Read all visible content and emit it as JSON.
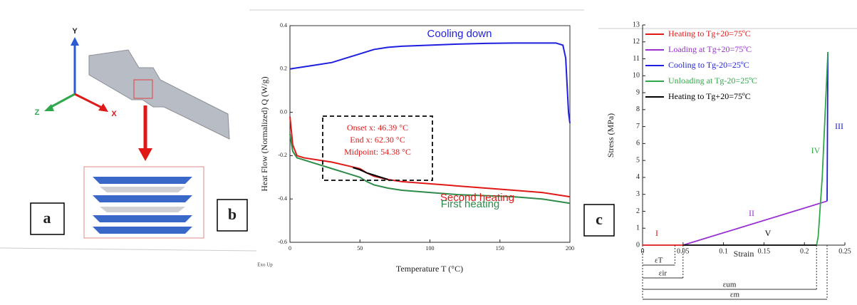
{
  "panel_labels": [
    "a",
    "b",
    "c"
  ],
  "diagram": {
    "axis_labels": [
      "Y",
      "Z",
      "X"
    ]
  },
  "chart_data": [
    {
      "type": "line",
      "x_label": "Temperature T (°C)",
      "y_label": "Heat Flow (Normalized) Q (W/g)",
      "xlim": [
        0,
        200
      ],
      "xticks": [
        0,
        50,
        100,
        150,
        200
      ],
      "ylim": [
        -0.6,
        0.4
      ],
      "yticks": [
        -0.6,
        -0.4,
        -0.2,
        {
          "value": 0,
          "label": "0.0"
        },
        0.2,
        0.4
      ],
      "series": [
        {
          "name": "Cooling down",
          "color": "#1f1fe0",
          "x": [
            0,
            10,
            20,
            30,
            40,
            50,
            60,
            70,
            80,
            100,
            120,
            140,
            160,
            180,
            190,
            195,
            197,
            199,
            200
          ],
          "values": [
            0.2,
            0.21,
            0.22,
            0.23,
            0.25,
            0.27,
            0.29,
            0.3,
            0.305,
            0.31,
            0.315,
            0.318,
            0.32,
            0.32,
            0.32,
            0.31,
            0.25,
            0.0,
            -0.05
          ]
        },
        {
          "name": "Second heating",
          "color": "#e01818",
          "x": [
            0,
            2,
            5,
            10,
            20,
            30,
            40,
            50,
            55,
            60,
            70,
            80,
            100,
            120,
            140,
            160,
            180,
            200
          ],
          "values": [
            -0.02,
            -0.15,
            -0.2,
            -0.21,
            -0.22,
            -0.23,
            -0.245,
            -0.26,
            -0.28,
            -0.295,
            -0.31,
            -0.32,
            -0.33,
            -0.34,
            -0.35,
            -0.36,
            -0.37,
            -0.39
          ]
        },
        {
          "name": "First heating",
          "color": "#2e8b4a",
          "x": [
            0,
            2,
            5,
            10,
            20,
            30,
            40,
            50,
            55,
            60,
            70,
            80,
            100,
            120,
            140,
            160,
            180,
            200
          ],
          "values": [
            -0.1,
            -0.18,
            -0.21,
            -0.22,
            -0.24,
            -0.26,
            -0.28,
            -0.3,
            -0.32,
            -0.335,
            -0.35,
            -0.36,
            -0.37,
            -0.38,
            -0.385,
            -0.39,
            -0.4,
            -0.42
          ]
        },
        {
          "color": "#000000",
          "x": [
            45,
            50,
            55,
            60,
            65,
            70
          ],
          "values": [
            -0.255,
            -0.265,
            -0.28,
            -0.29,
            -0.3,
            -0.31
          ]
        }
      ],
      "annotations": [
        "Onset x: 46.39 °C",
        "End x: 62.30 °C",
        "Midpoint: 54.38 °C",
        "Exo Up"
      ]
    },
    {
      "type": "line",
      "x_label": "Strain",
      "y_label": "Stress (MPa)",
      "xlim": [
        0,
        0.25
      ],
      "xticks": [
        0,
        0.05,
        0.1,
        0.15,
        0.2,
        0.25
      ],
      "ylim": [
        0,
        13
      ],
      "yticks": [
        0,
        1,
        2,
        3,
        4,
        5,
        6,
        7,
        8,
        9,
        10,
        11,
        12,
        13
      ],
      "legend": "upper left",
      "series": [
        {
          "name": "Heating to Tg+20=75ºC",
          "color": "#e01818",
          "x": [
            0,
            0.05
          ],
          "values": [
            0,
            0
          ]
        },
        {
          "name": "Loading at Tg+20=75ºC",
          "color": "#9b30d0",
          "x": [
            0.05,
            0.228
          ],
          "values": [
            0,
            2.6
          ]
        },
        {
          "name": "Cooling to Tg-20=25ºC",
          "color": "#1f1fe0",
          "x": [
            0.228,
            0.229
          ],
          "values": [
            2.6,
            11.4
          ]
        },
        {
          "name": "Unloading at Tg-20=25ºC",
          "color": "#2ea84a",
          "x": [
            0.229,
            0.222,
            0.217,
            0.215
          ],
          "values": [
            11.4,
            4,
            0.5,
            0
          ]
        },
        {
          "name": "Heating to Tg+20=75ºC",
          "color": "#000000",
          "x": [
            0.215,
            0.05
          ],
          "values": [
            0,
            0
          ]
        }
      ],
      "annotations": [
        "I",
        "II",
        "III",
        "IV",
        "V"
      ],
      "dimensions": [
        {
          "label": "εT",
          "x": 0.04
        },
        {
          "label": "εir",
          "x": 0.05
        },
        {
          "label": "εum",
          "x": 0.215
        },
        {
          "label": "εm",
          "x": 0.228
        }
      ]
    }
  ]
}
